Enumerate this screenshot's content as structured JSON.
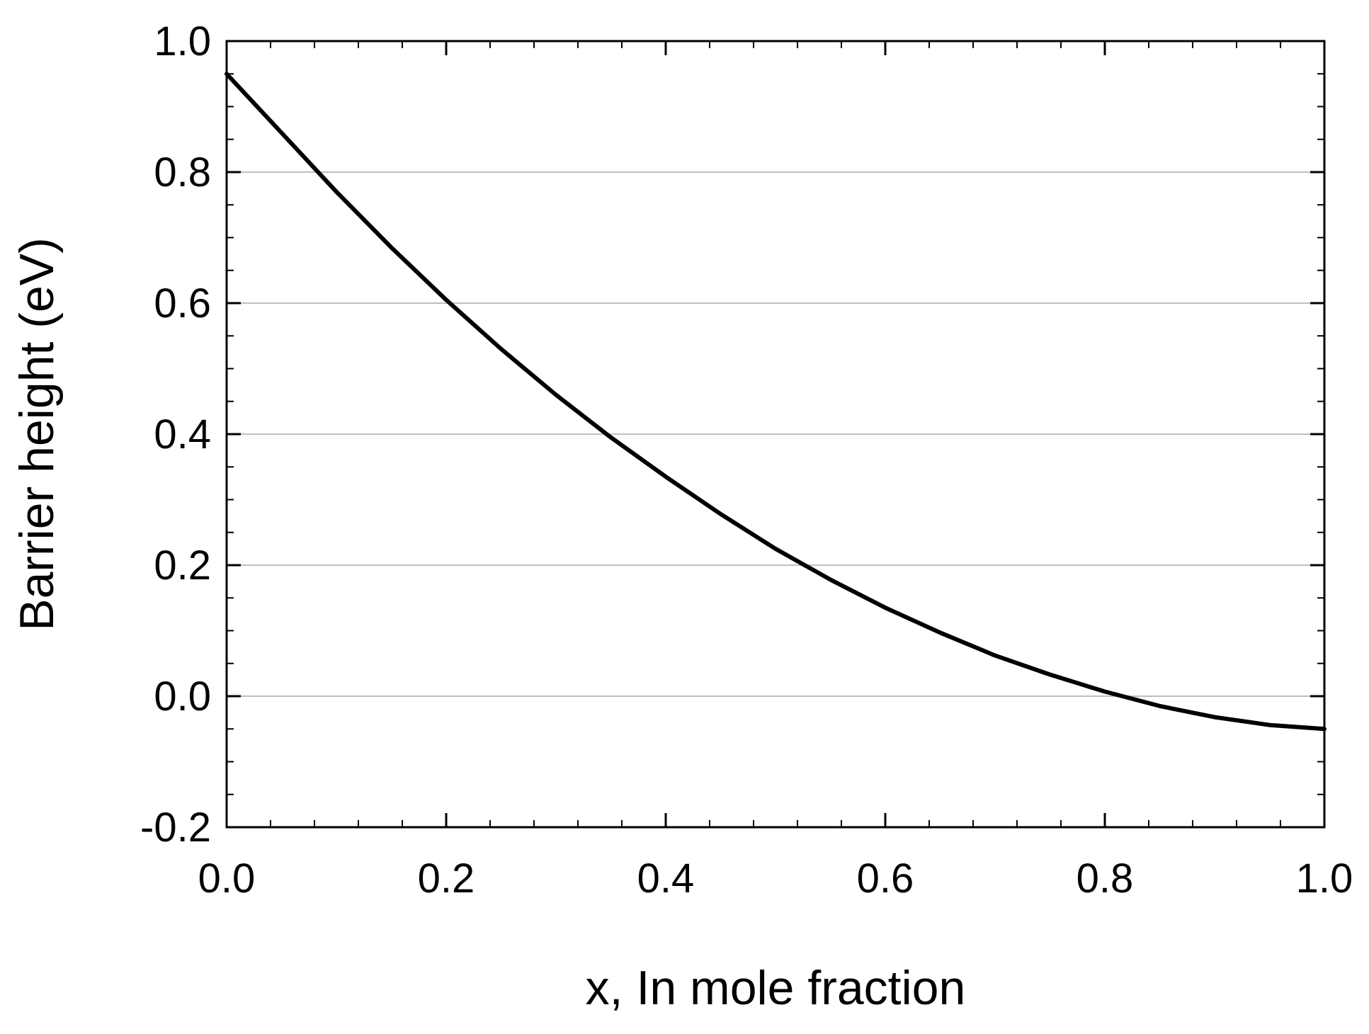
{
  "chart_data": {
    "type": "line",
    "title": "",
    "xlabel": "x, In mole fraction",
    "ylabel": "Barrier height (eV)",
    "xlim": [
      0.0,
      1.0
    ],
    "ylim": [
      -0.2,
      1.0
    ],
    "x_ticks": [
      0.0,
      0.2,
      0.4,
      0.6,
      0.8,
      1.0
    ],
    "x_tick_labels": [
      "0.0",
      "0.2",
      "0.4",
      "0.6",
      "0.8",
      "1.0"
    ],
    "y_ticks": [
      -0.2,
      0.0,
      0.2,
      0.4,
      0.6,
      0.8,
      1.0
    ],
    "y_tick_labels": [
      "-0.2",
      "0.0",
      "0.2",
      "0.4",
      "0.6",
      "0.8",
      "1.0"
    ],
    "grid": "horizontal",
    "legend": "none",
    "colors": {
      "line": "#000000",
      "grid": "#bfbfbf",
      "frame": "#000000"
    },
    "series": [
      {
        "x": [
          0.0,
          0.05,
          0.1,
          0.15,
          0.2,
          0.25,
          0.3,
          0.35,
          0.4,
          0.45,
          0.5,
          0.55,
          0.6,
          0.65,
          0.7,
          0.75,
          0.8,
          0.85,
          0.9,
          0.95,
          1.0
        ],
        "values": [
          0.95,
          0.86,
          0.77,
          0.685,
          0.605,
          0.53,
          0.46,
          0.395,
          0.335,
          0.278,
          0.225,
          0.178,
          0.135,
          0.097,
          0.062,
          0.033,
          0.007,
          -0.015,
          -0.032,
          -0.044,
          -0.05
        ]
      }
    ]
  }
}
